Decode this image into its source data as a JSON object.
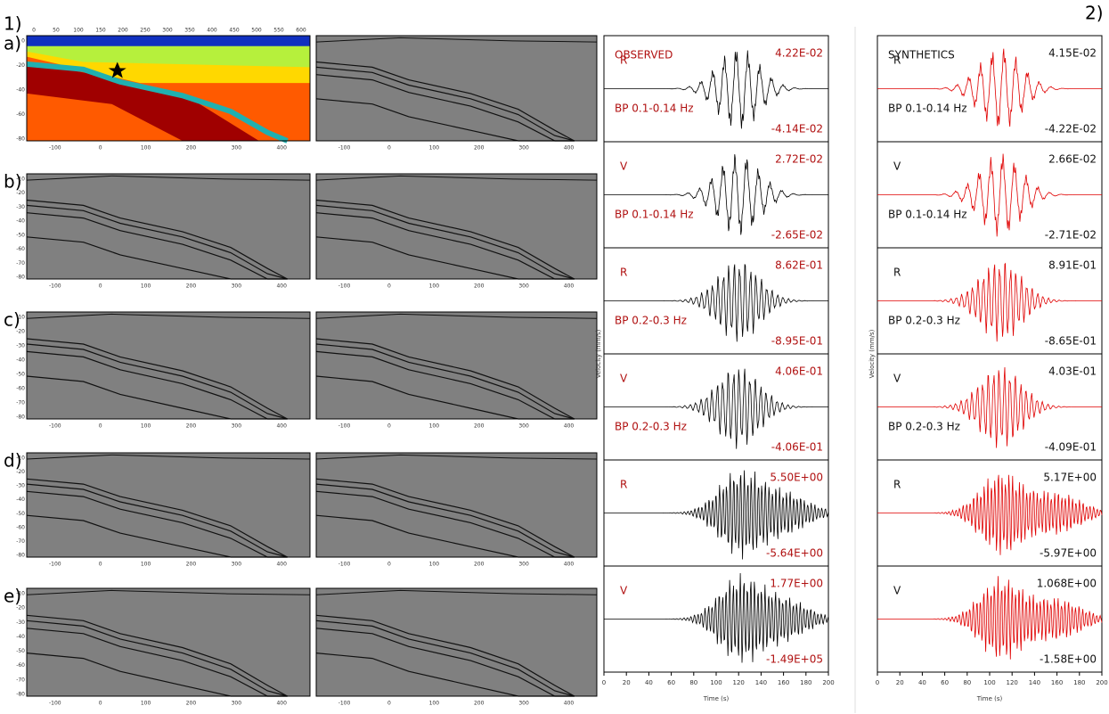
{
  "figure_labels": {
    "part1": "1)",
    "part2": "2)"
  },
  "snapshot_rows": [
    {
      "label": "a)"
    },
    {
      "label": "b)"
    },
    {
      "label": "c)"
    },
    {
      "label": "d)"
    },
    {
      "label": "e)"
    }
  ],
  "snapshot_axes": {
    "top_ticks": [
      0,
      50,
      100,
      150,
      200,
      250,
      300,
      350,
      400,
      450,
      500,
      550,
      600
    ],
    "bottom_ticks": [
      -100,
      0,
      100,
      200,
      300,
      400
    ],
    "depth_ticks_a": [
      0,
      -20,
      -40,
      -60,
      -80
    ],
    "depth_ticks": [
      -10,
      -20,
      -30,
      -40,
      -50,
      -60,
      -70,
      -80
    ]
  },
  "observed": {
    "title": "OBSERVED",
    "traces": [
      {
        "component": "R",
        "band": "BP 0.1-0.14 Hz",
        "max": "4.22E-02",
        "min": "-4.14E-02"
      },
      {
        "component": "V",
        "band": "BP 0.1-0.14 Hz",
        "max": "2.72E-02",
        "min": "-2.65E-02"
      },
      {
        "component": "R",
        "band": "BP 0.2-0.3 Hz",
        "max": "8.62E-01",
        "min": "-8.95E-01"
      },
      {
        "component": "V",
        "band": "BP 0.2-0.3 Hz",
        "max": "4.06E-01",
        "min": "-4.06E-01"
      },
      {
        "component": "R",
        "max": "5.50E+00",
        "min": "-5.64E+00"
      },
      {
        "component": "V",
        "max": "1.77E+00",
        "min": "-1.49E+05"
      }
    ]
  },
  "synthetics": {
    "title": "SYNTHETICS",
    "traces": [
      {
        "component": "R",
        "band": "BP 0.1-0.14 Hz",
        "max": "4.15E-02",
        "min": "-4.22E-02"
      },
      {
        "component": "V",
        "band": "BP 0.1-0.14 Hz",
        "max": "2.66E-02",
        "min": "-2.71E-02"
      },
      {
        "component": "R",
        "band": "BP 0.2-0.3 Hz",
        "max": "8.91E-01",
        "min": "-8.65E-01"
      },
      {
        "component": "V",
        "band": "BP 0.2-0.3 Hz",
        "max": "4.03E-01",
        "min": "-4.09E-01"
      },
      {
        "component": "R",
        "max": "5.17E+00",
        "min": "-5.97E+00"
      },
      {
        "component": "V",
        "max": "1.068E+00",
        "min": "-1.58E+00"
      }
    ]
  },
  "seismogram_axes": {
    "x_label": "Time (s)",
    "y_label": "Velocity (mm/s)",
    "x_ticks": [
      0,
      20,
      40,
      60,
      80,
      100,
      120,
      140,
      160,
      180,
      200
    ]
  }
}
